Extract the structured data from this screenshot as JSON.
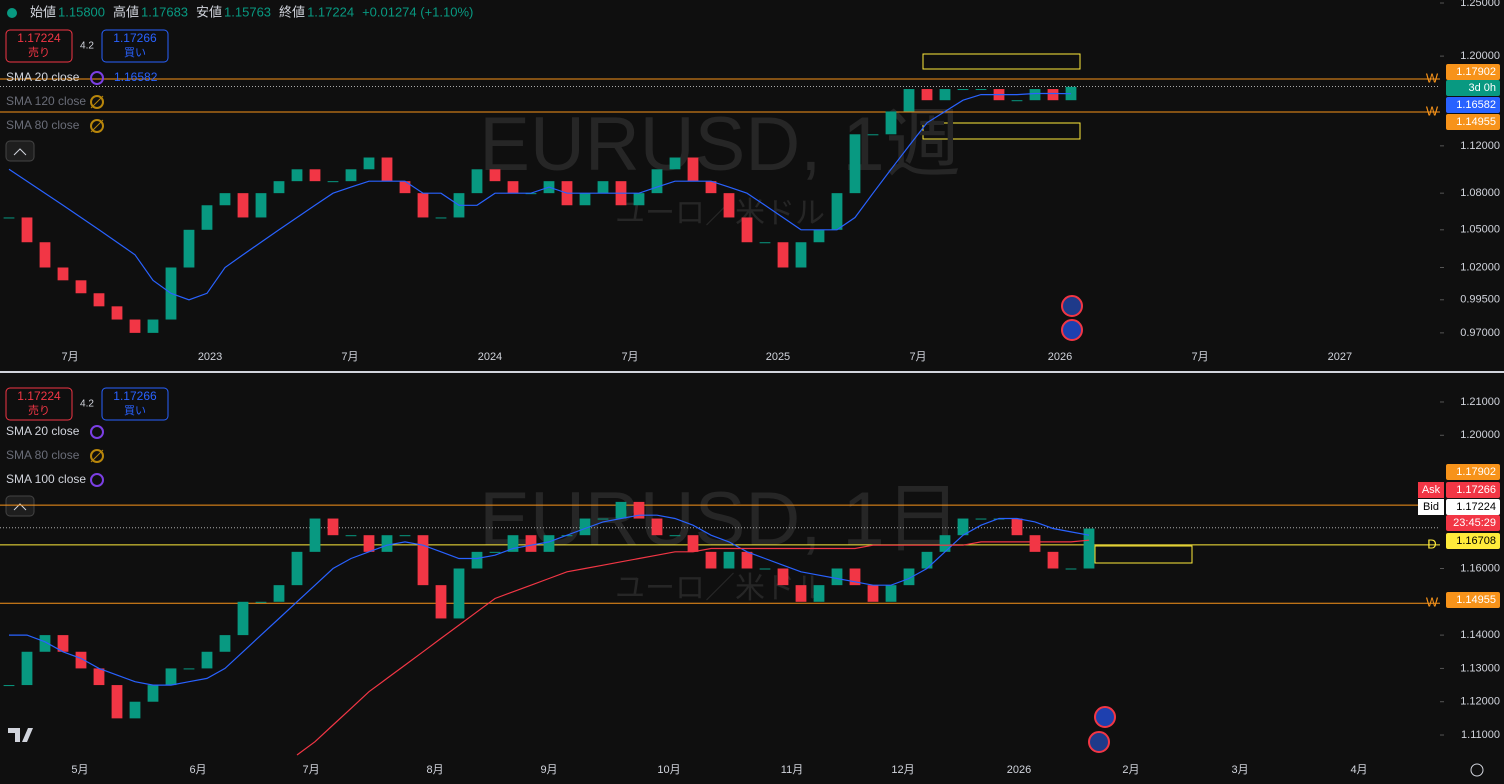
{
  "header": {
    "open_label": "始値",
    "open": "1.15800",
    "high_label": "高値",
    "high": "1.17683",
    "low_label": "安値",
    "low": "1.15763",
    "close_label": "終値",
    "close": "1.17224",
    "change": "+0.01274 (+1.10%)"
  },
  "chart_data": [
    {
      "type": "candlestick",
      "title": "EURUSD, 1週",
      "subtitle": "ユーロ／米ドル",
      "log": true,
      "trade": {
        "sell": 1.17224,
        "sell_label": "売り",
        "spread": 4.2,
        "buy": 1.17266,
        "buy_label": "買い"
      },
      "close": [
        1.06,
        1.04,
        1.02,
        1.01,
        1.0,
        0.99,
        0.98,
        0.97,
        0.98,
        1.02,
        1.05,
        1.07,
        1.08,
        1.06,
        1.08,
        1.09,
        1.1,
        1.09,
        1.09,
        1.1,
        1.11,
        1.09,
        1.08,
        1.06,
        1.06,
        1.08,
        1.1,
        1.09,
        1.08,
        1.08,
        1.09,
        1.07,
        1.08,
        1.09,
        1.07,
        1.08,
        1.1,
        1.11,
        1.09,
        1.08,
        1.06,
        1.04,
        1.04,
        1.02,
        1.04,
        1.05,
        1.08,
        1.13,
        1.13,
        1.15,
        1.17,
        1.16,
        1.17,
        1.17,
        1.17,
        1.16,
        1.16,
        1.17,
        1.16,
        1.172
      ],
      "indicators": [
        {
          "name": "SMA 20 close",
          "color": "#2962ff",
          "last": 1.16582,
          "values": [
            1.1,
            1.09,
            1.08,
            1.07,
            1.06,
            1.05,
            1.04,
            1.03,
            1.01,
            1.0,
            0.995,
            1.0,
            1.02,
            1.03,
            1.04,
            1.05,
            1.06,
            1.07,
            1.08,
            1.085,
            1.09,
            1.09,
            1.09,
            1.08,
            1.08,
            1.07,
            1.07,
            1.08,
            1.08,
            1.08,
            1.085,
            1.08,
            1.08,
            1.08,
            1.08,
            1.08,
            1.085,
            1.09,
            1.09,
            1.09,
            1.085,
            1.08,
            1.07,
            1.06,
            1.05,
            1.05,
            1.05,
            1.06,
            1.08,
            1.1,
            1.12,
            1.14,
            1.15,
            1.16,
            1.165,
            1.165,
            1.165,
            1.166,
            1.166,
            1.16582
          ]
        },
        {
          "name": "SMA 120 close",
          "hidden": true
        },
        {
          "name": "SMA 80 close",
          "hidden": true
        }
      ],
      "ylim": [
        0.961,
        1.2529
      ],
      "yticks": [
        {
          "value": 1.25,
          "label": "1.25000"
        },
        {
          "value": 1.2,
          "label": "1.20000"
        },
        {
          "value": 1.12,
          "label": "1.12000"
        },
        {
          "value": 1.08,
          "label": "1.08000"
        },
        {
          "value": 1.05,
          "label": "1.05000"
        },
        {
          "value": 1.02,
          "label": "1.02000"
        },
        {
          "value": 0.995,
          "label": "0.99500"
        },
        {
          "value": 0.97,
          "label": "0.97000"
        }
      ],
      "xlim": [
        -0.5,
        79.5
      ],
      "xticks": [
        {
          "value": 3.39,
          "label": "7月"
        },
        {
          "value": 11.17,
          "label": "2023"
        },
        {
          "value": 18.94,
          "label": "7月"
        },
        {
          "value": 26.72,
          "label": "2024"
        },
        {
          "value": 34.5,
          "label": "7月"
        },
        {
          "value": 42.72,
          "label": "2025"
        },
        {
          "value": 50.5,
          "label": "7月"
        },
        {
          "value": 58.39,
          "label": "2026"
        },
        {
          "value": 66.17,
          "label": "7月"
        },
        {
          "value": 73.94,
          "label": "2027"
        }
      ],
      "last_price": 1.17224,
      "levels": [
        {
          "value": 1.17902,
          "tag": "W",
          "color": "#f7931a"
        },
        {
          "value": 1.14955,
          "tag": "W",
          "color": "#f7931a"
        }
      ],
      "price_tags": [
        {
          "value": 1.17902,
          "color": "#f7931a"
        },
        {
          "text": "3d 0h",
          "color": "#089981"
        },
        {
          "value": 1.16582,
          "color": "#2962ff"
        },
        {
          "value": 1.14955,
          "color": "#f7931a"
        }
      ]
    },
    {
      "type": "candlestick",
      "title": "EURUSD, 1日",
      "subtitle": "ユーロ／米ドル",
      "log": false,
      "trade": {
        "sell": 1.17224,
        "sell_label": "売り",
        "spread": 4.2,
        "buy": 1.17266,
        "buy_label": "買い"
      },
      "close": [
        1.125,
        1.135,
        1.14,
        1.135,
        1.13,
        1.125,
        1.115,
        1.12,
        1.125,
        1.13,
        1.13,
        1.135,
        1.14,
        1.15,
        1.15,
        1.155,
        1.165,
        1.175,
        1.17,
        1.17,
        1.165,
        1.17,
        1.17,
        1.155,
        1.145,
        1.16,
        1.165,
        1.165,
        1.17,
        1.165,
        1.17,
        1.17,
        1.175,
        1.175,
        1.18,
        1.175,
        1.17,
        1.17,
        1.165,
        1.16,
        1.165,
        1.16,
        1.16,
        1.155,
        1.15,
        1.155,
        1.16,
        1.155,
        1.15,
        1.155,
        1.16,
        1.165,
        1.17,
        1.175,
        1.175,
        1.175,
        1.17,
        1.165,
        1.16,
        1.16,
        1.172
      ],
      "indicators": [
        {
          "name": "SMA 20 close",
          "color": "#2962ff",
          "values": [
            1.14,
            1.14,
            1.138,
            1.135,
            1.133,
            1.13,
            1.128,
            1.126,
            1.125,
            1.125,
            1.126,
            1.127,
            1.13,
            1.135,
            1.14,
            1.145,
            1.15,
            1.155,
            1.16,
            1.163,
            1.165,
            1.167,
            1.168,
            1.167,
            1.165,
            1.163,
            1.163,
            1.164,
            1.166,
            1.167,
            1.168,
            1.17,
            1.172,
            1.174,
            1.175,
            1.176,
            1.176,
            1.175,
            1.173,
            1.17,
            1.168,
            1.165,
            1.163,
            1.161,
            1.159,
            1.158,
            1.157,
            1.156,
            1.155,
            1.155,
            1.157,
            1.16,
            1.165,
            1.17,
            1.173,
            1.175,
            1.175,
            1.174,
            1.172,
            1.171,
            1.17
          ]
        },
        {
          "name": "SMA 80 close",
          "hidden": true
        },
        {
          "name": "SMA 100 close",
          "color": "#f23645",
          "values": [
            null,
            null,
            null,
            null,
            null,
            null,
            null,
            null,
            null,
            null,
            null,
            null,
            null,
            null,
            null,
            null,
            1.104,
            1.108,
            1.113,
            1.118,
            1.123,
            1.127,
            1.131,
            1.135,
            1.139,
            1.143,
            1.147,
            1.151,
            1.153,
            1.155,
            1.157,
            1.159,
            1.16,
            1.161,
            1.162,
            1.163,
            1.164,
            1.165,
            1.165,
            1.166,
            1.166,
            1.166,
            1.166,
            1.166,
            1.166,
            1.166,
            1.166,
            1.166,
            1.167,
            1.167,
            1.167,
            1.167,
            1.167,
            1.167,
            1.168,
            1.168,
            1.168,
            1.168,
            1.168,
            1.168,
            1.1685
          ]
        }
      ],
      "ylim": [
        1.1025,
        1.2181
      ],
      "yticks": [
        {
          "value": 1.21,
          "label": "1.21000"
        },
        {
          "value": 1.2,
          "label": "1.20000"
        },
        {
          "value": 1.16,
          "label": "1.16000"
        },
        {
          "value": 1.14,
          "label": "1.14000"
        },
        {
          "value": 1.13,
          "label": "1.13000"
        },
        {
          "value": 1.12,
          "label": "1.12000"
        },
        {
          "value": 1.11,
          "label": "1.11000"
        }
      ],
      "xlim": [
        -0.5,
        79.5
      ],
      "xticks": [
        {
          "value": 3.94,
          "label": "5月"
        },
        {
          "value": 10.5,
          "label": "6月"
        },
        {
          "value": 16.78,
          "label": "7月"
        },
        {
          "value": 23.67,
          "label": "8月"
        },
        {
          "value": 30,
          "label": "9月"
        },
        {
          "value": 36.67,
          "label": "10月"
        },
        {
          "value": 43.5,
          "label": "11月"
        },
        {
          "value": 49.67,
          "label": "12月"
        },
        {
          "value": 56.11,
          "label": "2026"
        },
        {
          "value": 62.33,
          "label": "2月"
        },
        {
          "value": 68.39,
          "label": "3月"
        },
        {
          "value": 75,
          "label": "4月"
        }
      ],
      "last_price": 1.17224,
      "levels": [
        {
          "value": 1.17902,
          "color": "#f7931a"
        },
        {
          "value": 1.16708,
          "tag": "D",
          "color": "#ffeb3b"
        },
        {
          "value": 1.14955,
          "tag": "W",
          "color": "#f7931a"
        }
      ],
      "price_tags": [
        {
          "value": 1.17902,
          "color": "#f7931a"
        },
        {
          "label": "Ask",
          "value": 1.17266,
          "color": "#f23645"
        },
        {
          "label": "Bid",
          "value": 1.17224,
          "color": "#ffffff"
        },
        {
          "text": "23:45:29",
          "color": "#f23645"
        },
        {
          "value": 1.16708,
          "color": "#ffeb3b"
        },
        {
          "value": 1.14955,
          "color": "#f7931a"
        }
      ]
    }
  ]
}
